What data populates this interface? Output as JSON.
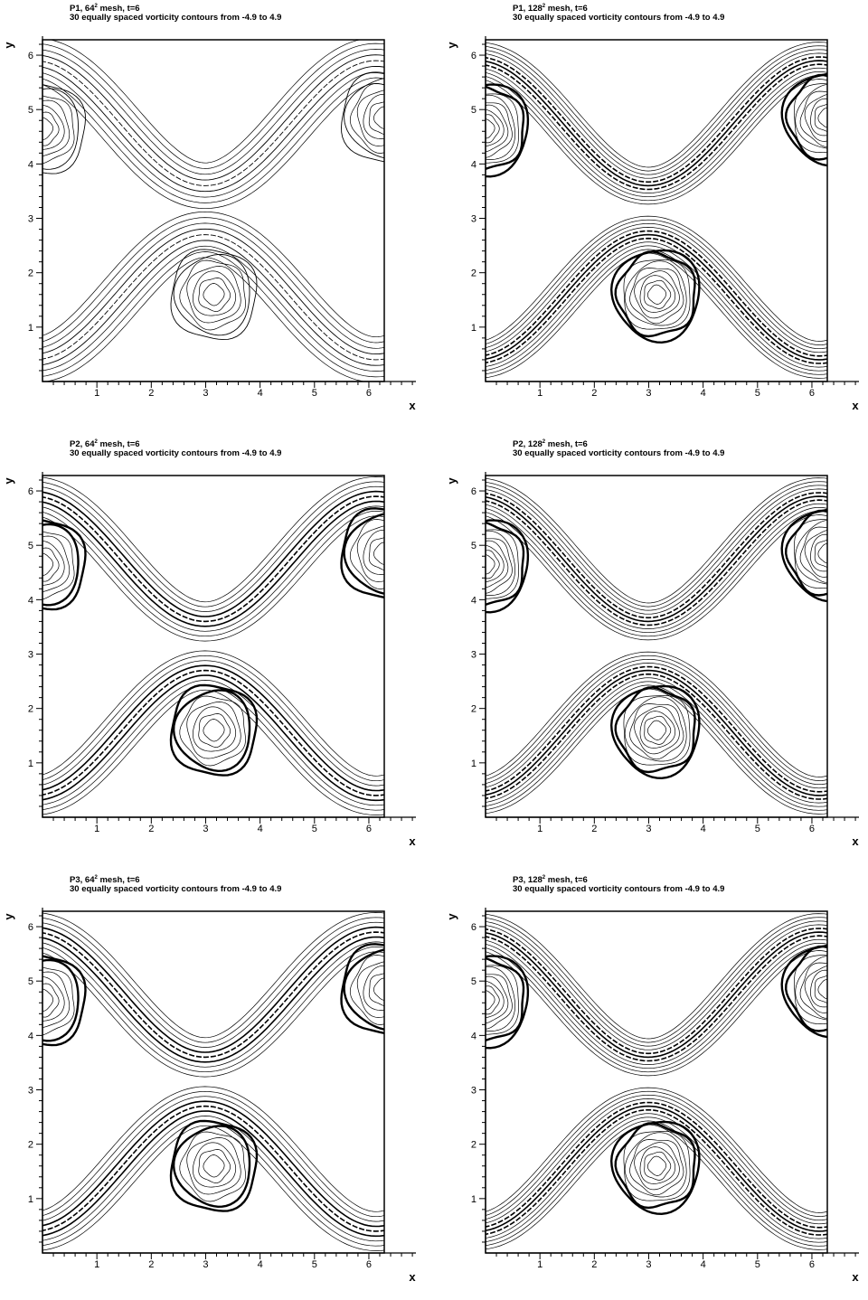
{
  "panels": [
    {
      "method": "P1",
      "mesh_base": "64",
      "mesh_exp": "2",
      "mesh_suffix": " mesh, t=6",
      "subtitle": "30 equally spaced vorticity contours from -4.9 to 4.9"
    },
    {
      "method": "P1",
      "mesh_base": "128",
      "mesh_exp": "2",
      "mesh_suffix": " mesh, t=6",
      "subtitle": "30 equally spaced vorticity contours from -4.9 to 4.9"
    },
    {
      "method": "P2",
      "mesh_base": "64",
      "mesh_exp": "2",
      "mesh_suffix": " mesh, t=6",
      "subtitle": "30 equally spaced vorticity contours from -4.9 to 4.9"
    },
    {
      "method": "P2",
      "mesh_base": "128",
      "mesh_exp": "2",
      "mesh_suffix": " mesh, t=6",
      "subtitle": "30 equally spaced vorticity contours from -4.9 to 4.9"
    },
    {
      "method": "P3",
      "mesh_base": "64",
      "mesh_exp": "2",
      "mesh_suffix": " mesh, t=6",
      "subtitle": "30 equally spaced vorticity contours from -4.9 to 4.9"
    },
    {
      "method": "P3",
      "mesh_base": "128",
      "mesh_exp": "2",
      "mesh_suffix": " mesh, t=6",
      "subtitle": "30 equally spaced vorticity contours from -4.9 to 4.9"
    }
  ],
  "chart_data": {
    "type": "contour",
    "field": "vorticity",
    "levels": {
      "count": 30,
      "min": -4.9,
      "max": 4.9
    },
    "time": 6,
    "xlabel": "x",
    "ylabel": "y",
    "xlim": [
      0,
      6.2832
    ],
    "ylim": [
      0,
      6.2832
    ],
    "xticks": [
      1,
      2,
      3,
      4,
      5,
      6
    ],
    "yticks": [
      1,
      2,
      3,
      4,
      5,
      6
    ],
    "layout": "3 rows x 2 columns",
    "plots": [
      {
        "method": "P1",
        "mesh": 64
      },
      {
        "method": "P1",
        "mesh": 128
      },
      {
        "method": "P2",
        "mesh": 64
      },
      {
        "method": "P2",
        "mesh": 128
      },
      {
        "method": "P3",
        "mesh": 64
      },
      {
        "method": "P3",
        "mesh": 128
      }
    ]
  }
}
